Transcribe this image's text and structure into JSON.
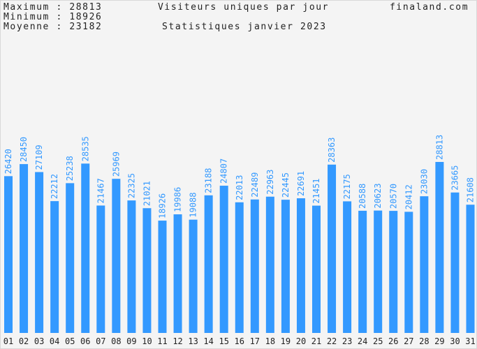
{
  "header": {
    "max_label": "Maximum",
    "max_value": "28813",
    "min_label": "Minimum",
    "min_value": "18926",
    "avg_label": "Moyenne",
    "avg_value": "23182",
    "separator": ":",
    "title": "Visiteurs uniques par jour",
    "subtitle": "Statistiques janvier 2023",
    "site": "finaland.com"
  },
  "chart_data": {
    "type": "bar",
    "title": "Visiteurs uniques par jour",
    "subtitle": "Statistiques janvier 2023",
    "categories": [
      "01",
      "02",
      "03",
      "04",
      "05",
      "06",
      "07",
      "08",
      "09",
      "10",
      "11",
      "12",
      "13",
      "14",
      "15",
      "16",
      "17",
      "18",
      "19",
      "20",
      "21",
      "22",
      "23",
      "24",
      "25",
      "26",
      "27",
      "28",
      "29",
      "30",
      "31"
    ],
    "values": [
      26420,
      28450,
      27109,
      22212,
      25238,
      28535,
      21467,
      25969,
      22325,
      21021,
      18926,
      19986,
      19088,
      23188,
      24807,
      22013,
      22489,
      22963,
      22445,
      22691,
      21451,
      28363,
      22175,
      20588,
      20623,
      20570,
      20412,
      23030,
      28813,
      23665,
      21608
    ],
    "bar_color": "#3399ff",
    "value_label_color": "#3399ff",
    "background": "#f4f4f4",
    "grid": false
  }
}
